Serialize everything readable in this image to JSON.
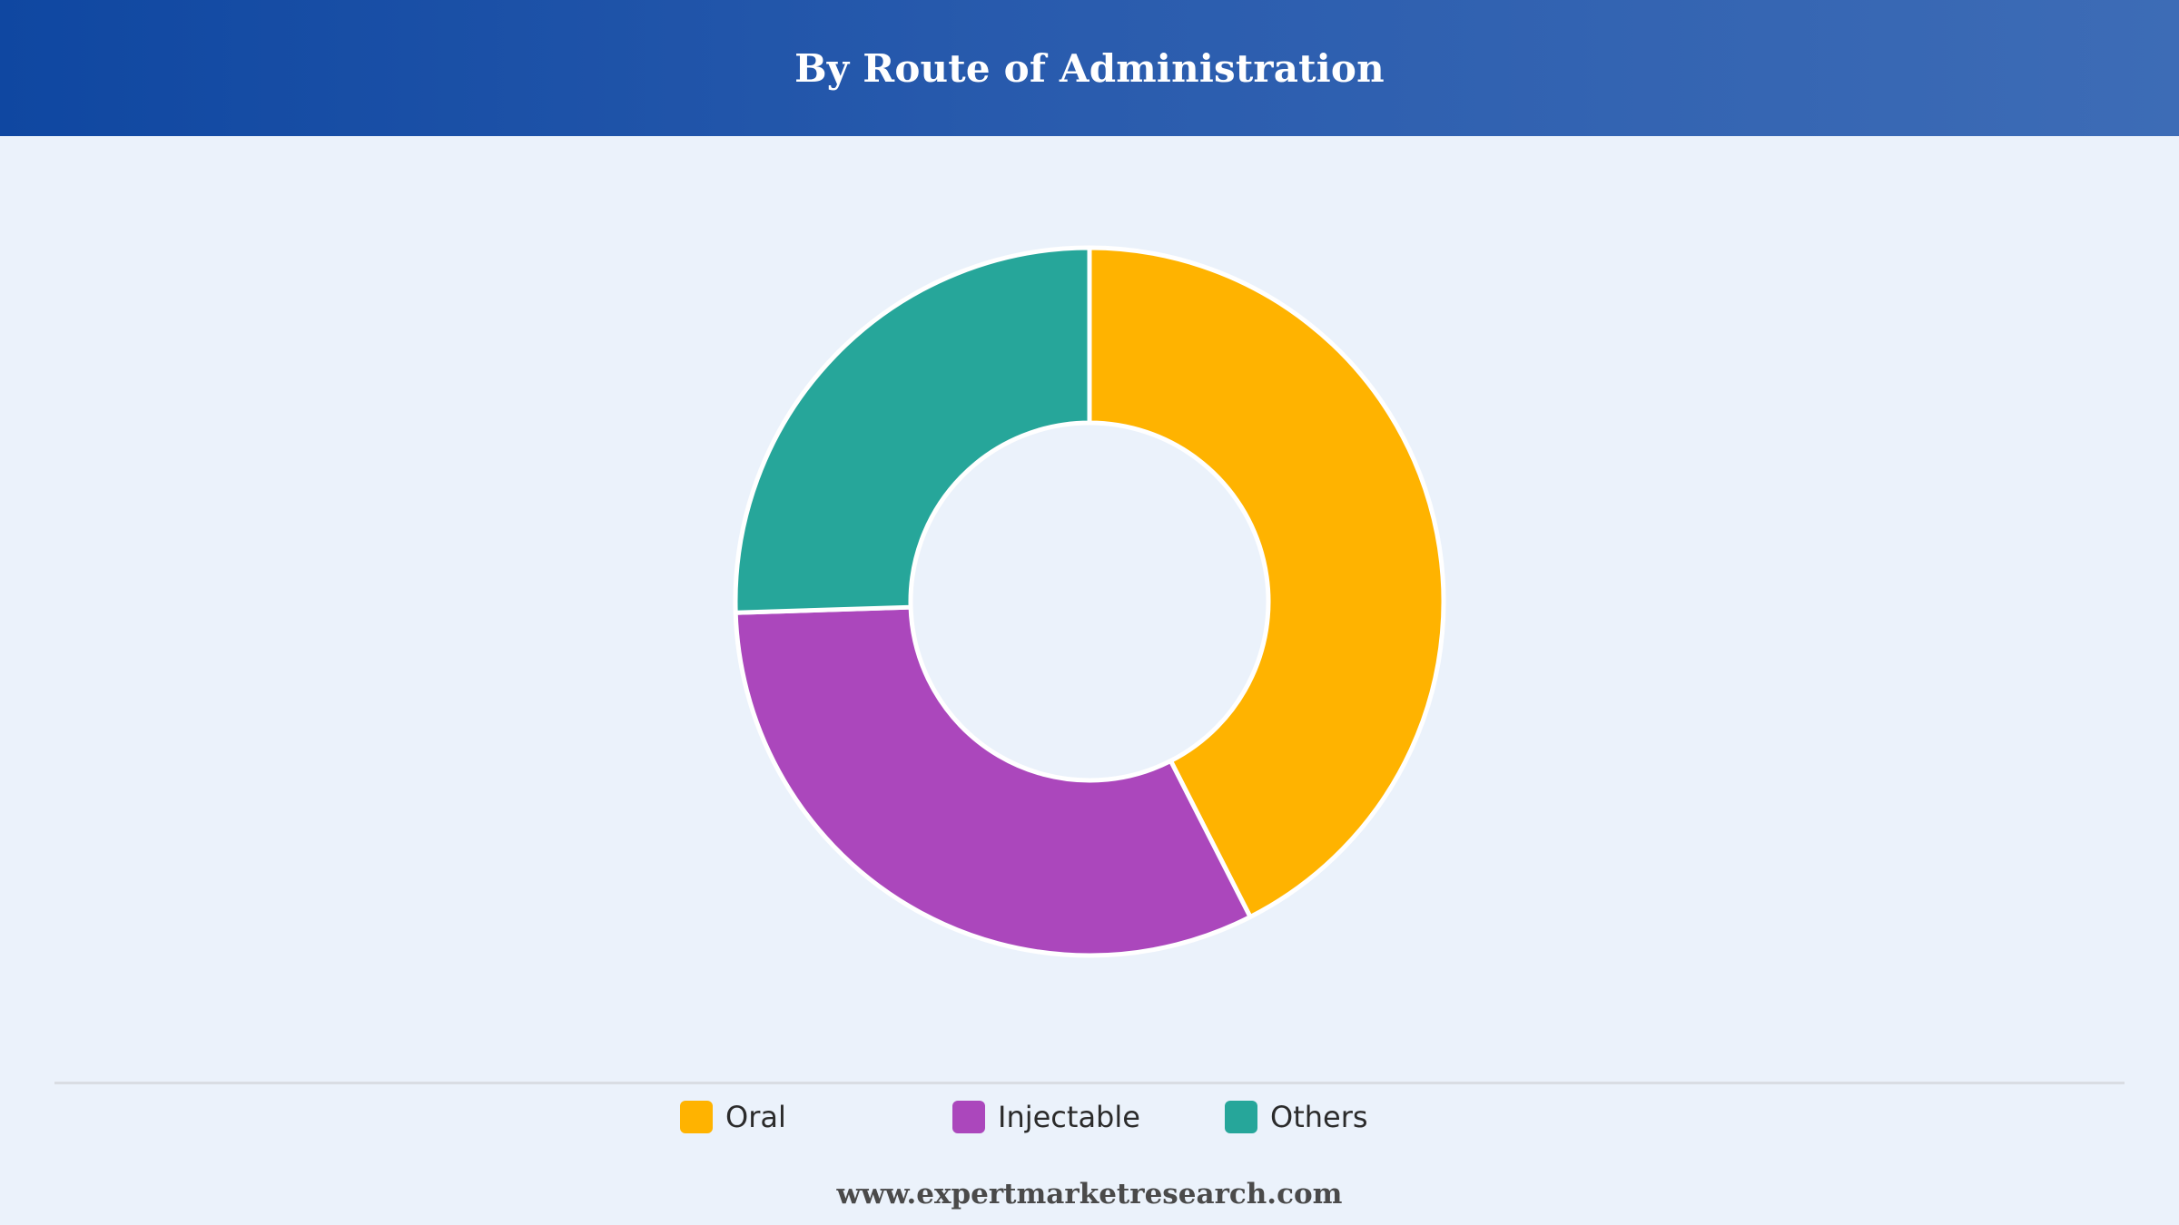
{
  "header": {
    "title": "By Route of Administration"
  },
  "chart_data": {
    "type": "pie",
    "donut": true,
    "title": "By Route of Administration",
    "categories": [
      "Oral",
      "Injectable",
      "Others"
    ],
    "values": [
      42.5,
      32,
      25.5
    ],
    "colors": [
      "#FFB300",
      "#AB47BC",
      "#26A69A"
    ],
    "legend_position": "bottom"
  },
  "legend": {
    "items": [
      {
        "label": "Oral",
        "color": "#FFB300"
      },
      {
        "label": "Injectable",
        "color": "#AB47BC"
      },
      {
        "label": "Others",
        "color": "#26A69A"
      }
    ]
  },
  "footer": {
    "text": "www.expertmarketresearch.com"
  }
}
